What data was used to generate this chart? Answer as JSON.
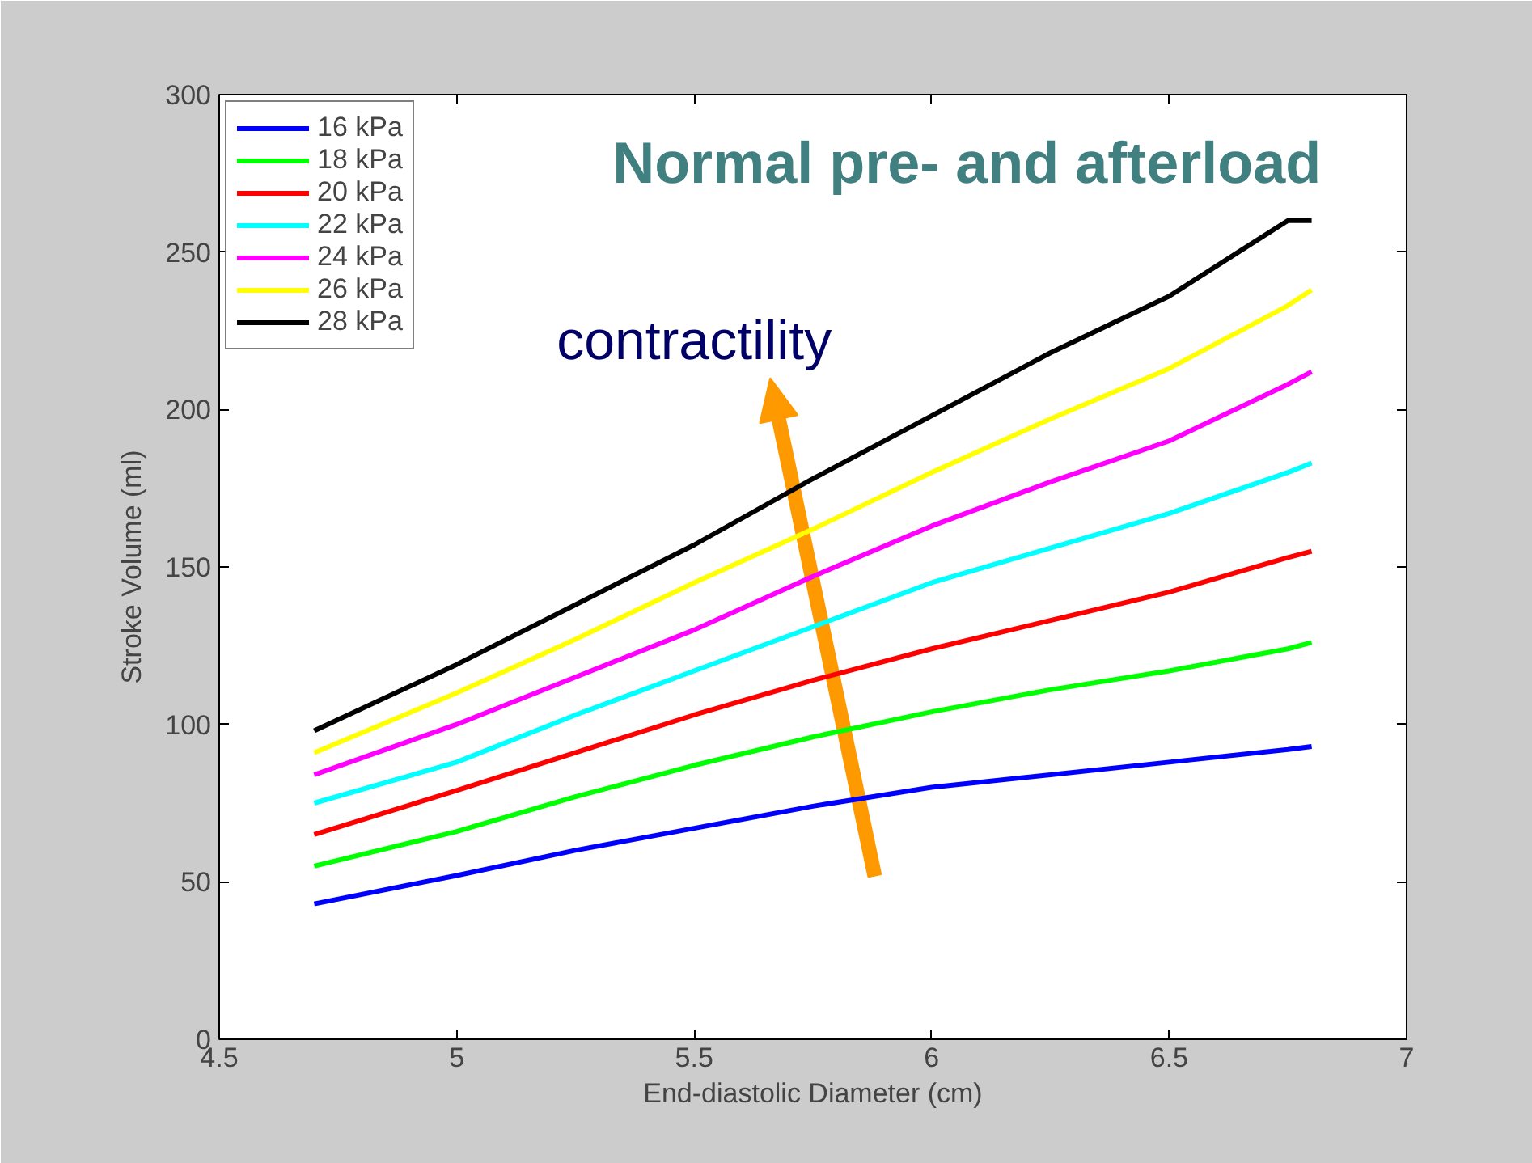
{
  "chart_data": {
    "type": "line",
    "title": "Normal pre- and afterload",
    "xlabel": "End-diastolic Diameter (cm)",
    "ylabel": "Stroke Volume (ml)",
    "annotations": [
      "contractility"
    ],
    "x": [
      4.7,
      5,
      5.25,
      5.5,
      5.75,
      6,
      6.25,
      6.5,
      6.75,
      6.8
    ],
    "series": [
      {
        "name": "16 kPa",
        "color": "#0000ff",
        "values": [
          43,
          52,
          60,
          67,
          74,
          80,
          84,
          88,
          92,
          93
        ]
      },
      {
        "name": "18 kPa",
        "color": "#00ff00",
        "values": [
          55,
          66,
          77,
          87,
          96,
          104,
          111,
          117,
          124,
          126
        ]
      },
      {
        "name": "20 kPa",
        "color": "#ff0000",
        "values": [
          65,
          79,
          91,
          103,
          114,
          124,
          133,
          142,
          153,
          155
        ]
      },
      {
        "name": "22 kPa",
        "color": "#00ffff",
        "values": [
          75,
          88,
          103,
          117,
          131,
          145,
          156,
          167,
          180,
          183
        ]
      },
      {
        "name": "24 kPa",
        "color": "#ff00ff",
        "values": [
          84,
          100,
          115,
          130,
          147,
          163,
          177,
          190,
          208,
          212
        ]
      },
      {
        "name": "26 kPa",
        "color": "#ffff00",
        "values": [
          91,
          110,
          127,
          145,
          162,
          180,
          197,
          213,
          233,
          238
        ]
      },
      {
        "name": "28 kPa",
        "color": "#000000",
        "values": [
          98,
          119,
          138,
          157,
          178,
          198,
          218,
          236,
          260,
          260
        ]
      }
    ],
    "xlim": [
      4.5,
      7
    ],
    "ylim": [
      0,
      300
    ],
    "xticks": [
      4.5,
      5,
      5.5,
      6,
      6.5,
      7
    ],
    "yticks": [
      0,
      50,
      100,
      150,
      200,
      250,
      300
    ],
    "grid": false,
    "legend": "top left",
    "line_style": "solid"
  }
}
